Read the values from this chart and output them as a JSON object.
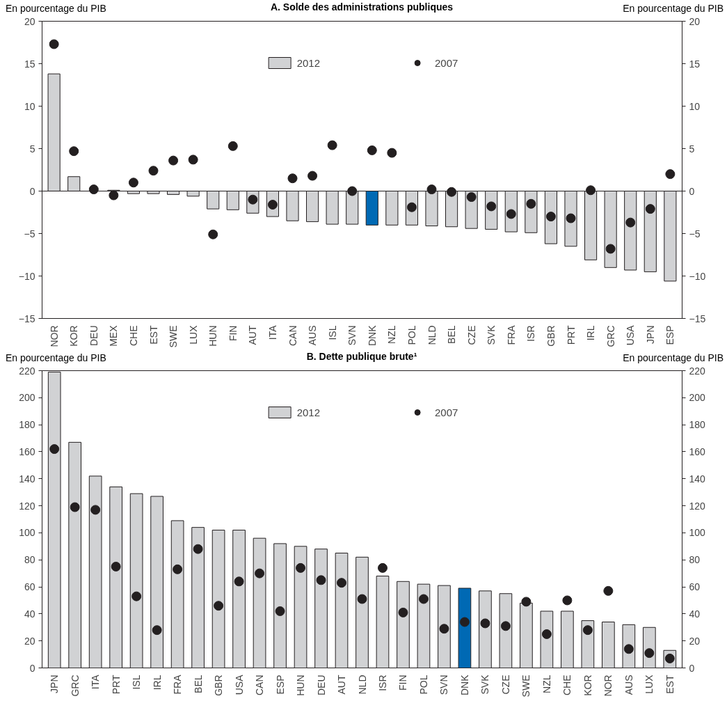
{
  "chart_data": [
    {
      "type": "bar",
      "title": "A. Solde des administrations publiques",
      "ylabel": "En pourcentage du PIB",
      "y2label": "En pourcentage du PIB",
      "categories": [
        "NOR",
        "KOR",
        "DEU",
        "MEX",
        "CHE",
        "EST",
        "SWE",
        "LUX",
        "HUN",
        "FIN",
        "AUT",
        "ITA",
        "CAN",
        "AUS",
        "ISL",
        "SVN",
        "DNK",
        "NZL",
        "POL",
        "NLD",
        "BEL",
        "CZE",
        "SVK",
        "FRA",
        "ISR",
        "GBR",
        "PRT",
        "IRL",
        "GRC",
        "USA",
        "JPN",
        "ESP"
      ],
      "series": [
        {
          "name": "2012",
          "colors": [
            "#d1d2d4",
            "#d1d2d4",
            "#d1d2d4",
            "#d1d2d4",
            "#d1d2d4",
            "#d1d2d4",
            "#d1d2d4",
            "#d1d2d4",
            "#d1d2d4",
            "#d1d2d4",
            "#d1d2d4",
            "#d1d2d4",
            "#d1d2d4",
            "#d1d2d4",
            "#d1d2d4",
            "#d1d2d4",
            "#0069b4",
            "#d1d2d4",
            "#d1d2d4",
            "#d1d2d4",
            "#d1d2d4",
            "#d1d2d4",
            "#d1d2d4",
            "#d1d2d4",
            "#d1d2d4",
            "#d1d2d4",
            "#d1d2d4",
            "#d1d2d4",
            "#d1d2d4",
            "#d1d2d4",
            "#d1d2d4",
            "#d1d2d4"
          ],
          "values": [
            13.8,
            1.7,
            null,
            0.1,
            -0.3,
            -0.3,
            -0.4,
            -0.6,
            -2.1,
            -2.2,
            -2.6,
            -3.0,
            -3.5,
            -3.6,
            -3.9,
            -3.9,
            -4.0,
            -4.0,
            -4.0,
            -4.1,
            -4.2,
            -4.4,
            -4.5,
            -4.8,
            -4.9,
            -6.2,
            -6.5,
            -8.1,
            -9.0,
            -9.3,
            -9.5,
            -10.6
          ]
        },
        {
          "name": "2007",
          "type": "scatter",
          "color": "#231f20",
          "values": [
            17.3,
            4.7,
            0.2,
            -0.5,
            1.0,
            2.4,
            3.6,
            3.7,
            -5.1,
            5.3,
            -1.0,
            -1.6,
            1.5,
            1.8,
            5.4,
            0.0,
            4.8,
            4.5,
            -1.9,
            0.2,
            -0.1,
            -0.7,
            -1.8,
            -2.7,
            -1.5,
            -3.0,
            -3.2,
            0.1,
            -6.8,
            -3.7,
            -2.1,
            2.0
          ]
        }
      ],
      "ylim": [
        -15,
        20
      ],
      "yticks": [
        -15,
        -10,
        -5,
        0,
        5,
        10,
        15,
        20
      ],
      "y2lim": [
        -15,
        20
      ],
      "y2ticks": [
        -15,
        -10,
        -5,
        0,
        5,
        10,
        15,
        20
      ],
      "legend": "top",
      "marker": "circle"
    },
    {
      "type": "bar",
      "title": "B. Dette publique brute¹",
      "ylabel": "En pourcentage du PIB",
      "y2label": "En pourcentage du PIB",
      "categories": [
        "JPN",
        "GRC",
        "ITA",
        "PRT",
        "ISL",
        "IRL",
        "FRA",
        "BEL",
        "GBR",
        "USA",
        "CAN",
        "ESP",
        "HUN",
        "DEU",
        "AUT",
        "NLD",
        "ISR",
        "FIN",
        "POL",
        "SVN",
        "DNK",
        "SVK",
        "CZE",
        "SWE",
        "NZL",
        "CHE",
        "KOR",
        "NOR",
        "AUS",
        "LUX",
        "EST"
      ],
      "series": [
        {
          "name": "2012",
          "colors": [
            "#d1d2d4",
            "#d1d2d4",
            "#d1d2d4",
            "#d1d2d4",
            "#d1d2d4",
            "#d1d2d4",
            "#d1d2d4",
            "#d1d2d4",
            "#d1d2d4",
            "#d1d2d4",
            "#d1d2d4",
            "#d1d2d4",
            "#d1d2d4",
            "#d1d2d4",
            "#d1d2d4",
            "#d1d2d4",
            "#d1d2d4",
            "#d1d2d4",
            "#d1d2d4",
            "#d1d2d4",
            "#0069b4",
            "#d1d2d4",
            "#d1d2d4",
            "#d1d2d4",
            "#d1d2d4",
            "#d1d2d4",
            "#d1d2d4",
            "#d1d2d4",
            "#d1d2d4",
            "#d1d2d4",
            "#d1d2d4"
          ],
          "values": [
            219,
            167,
            142,
            134,
            129,
            127,
            109,
            104,
            102,
            102,
            96,
            92,
            90,
            88,
            85,
            82,
            68,
            64,
            62,
            61,
            59,
            57,
            55,
            48,
            42,
            42,
            35,
            34,
            32,
            30,
            13
          ]
        },
        {
          "name": "2007",
          "type": "scatter",
          "color": "#231f20",
          "values": [
            162,
            119,
            117,
            75,
            53,
            28,
            73,
            88,
            46,
            64,
            70,
            42,
            74,
            65,
            63,
            51,
            74,
            41,
            51,
            29,
            34,
            33,
            31,
            49,
            25,
            50,
            28,
            57,
            14,
            11,
            7
          ]
        }
      ],
      "ylim": [
        0,
        220
      ],
      "yticks": [
        0,
        20,
        40,
        60,
        80,
        100,
        120,
        140,
        160,
        180,
        200,
        220
      ],
      "y2lim": [
        0,
        220
      ],
      "y2ticks": [
        0,
        20,
        40,
        60,
        80,
        100,
        120,
        140,
        160,
        180,
        200,
        220
      ],
      "legend": "top",
      "marker": "circle"
    }
  ]
}
